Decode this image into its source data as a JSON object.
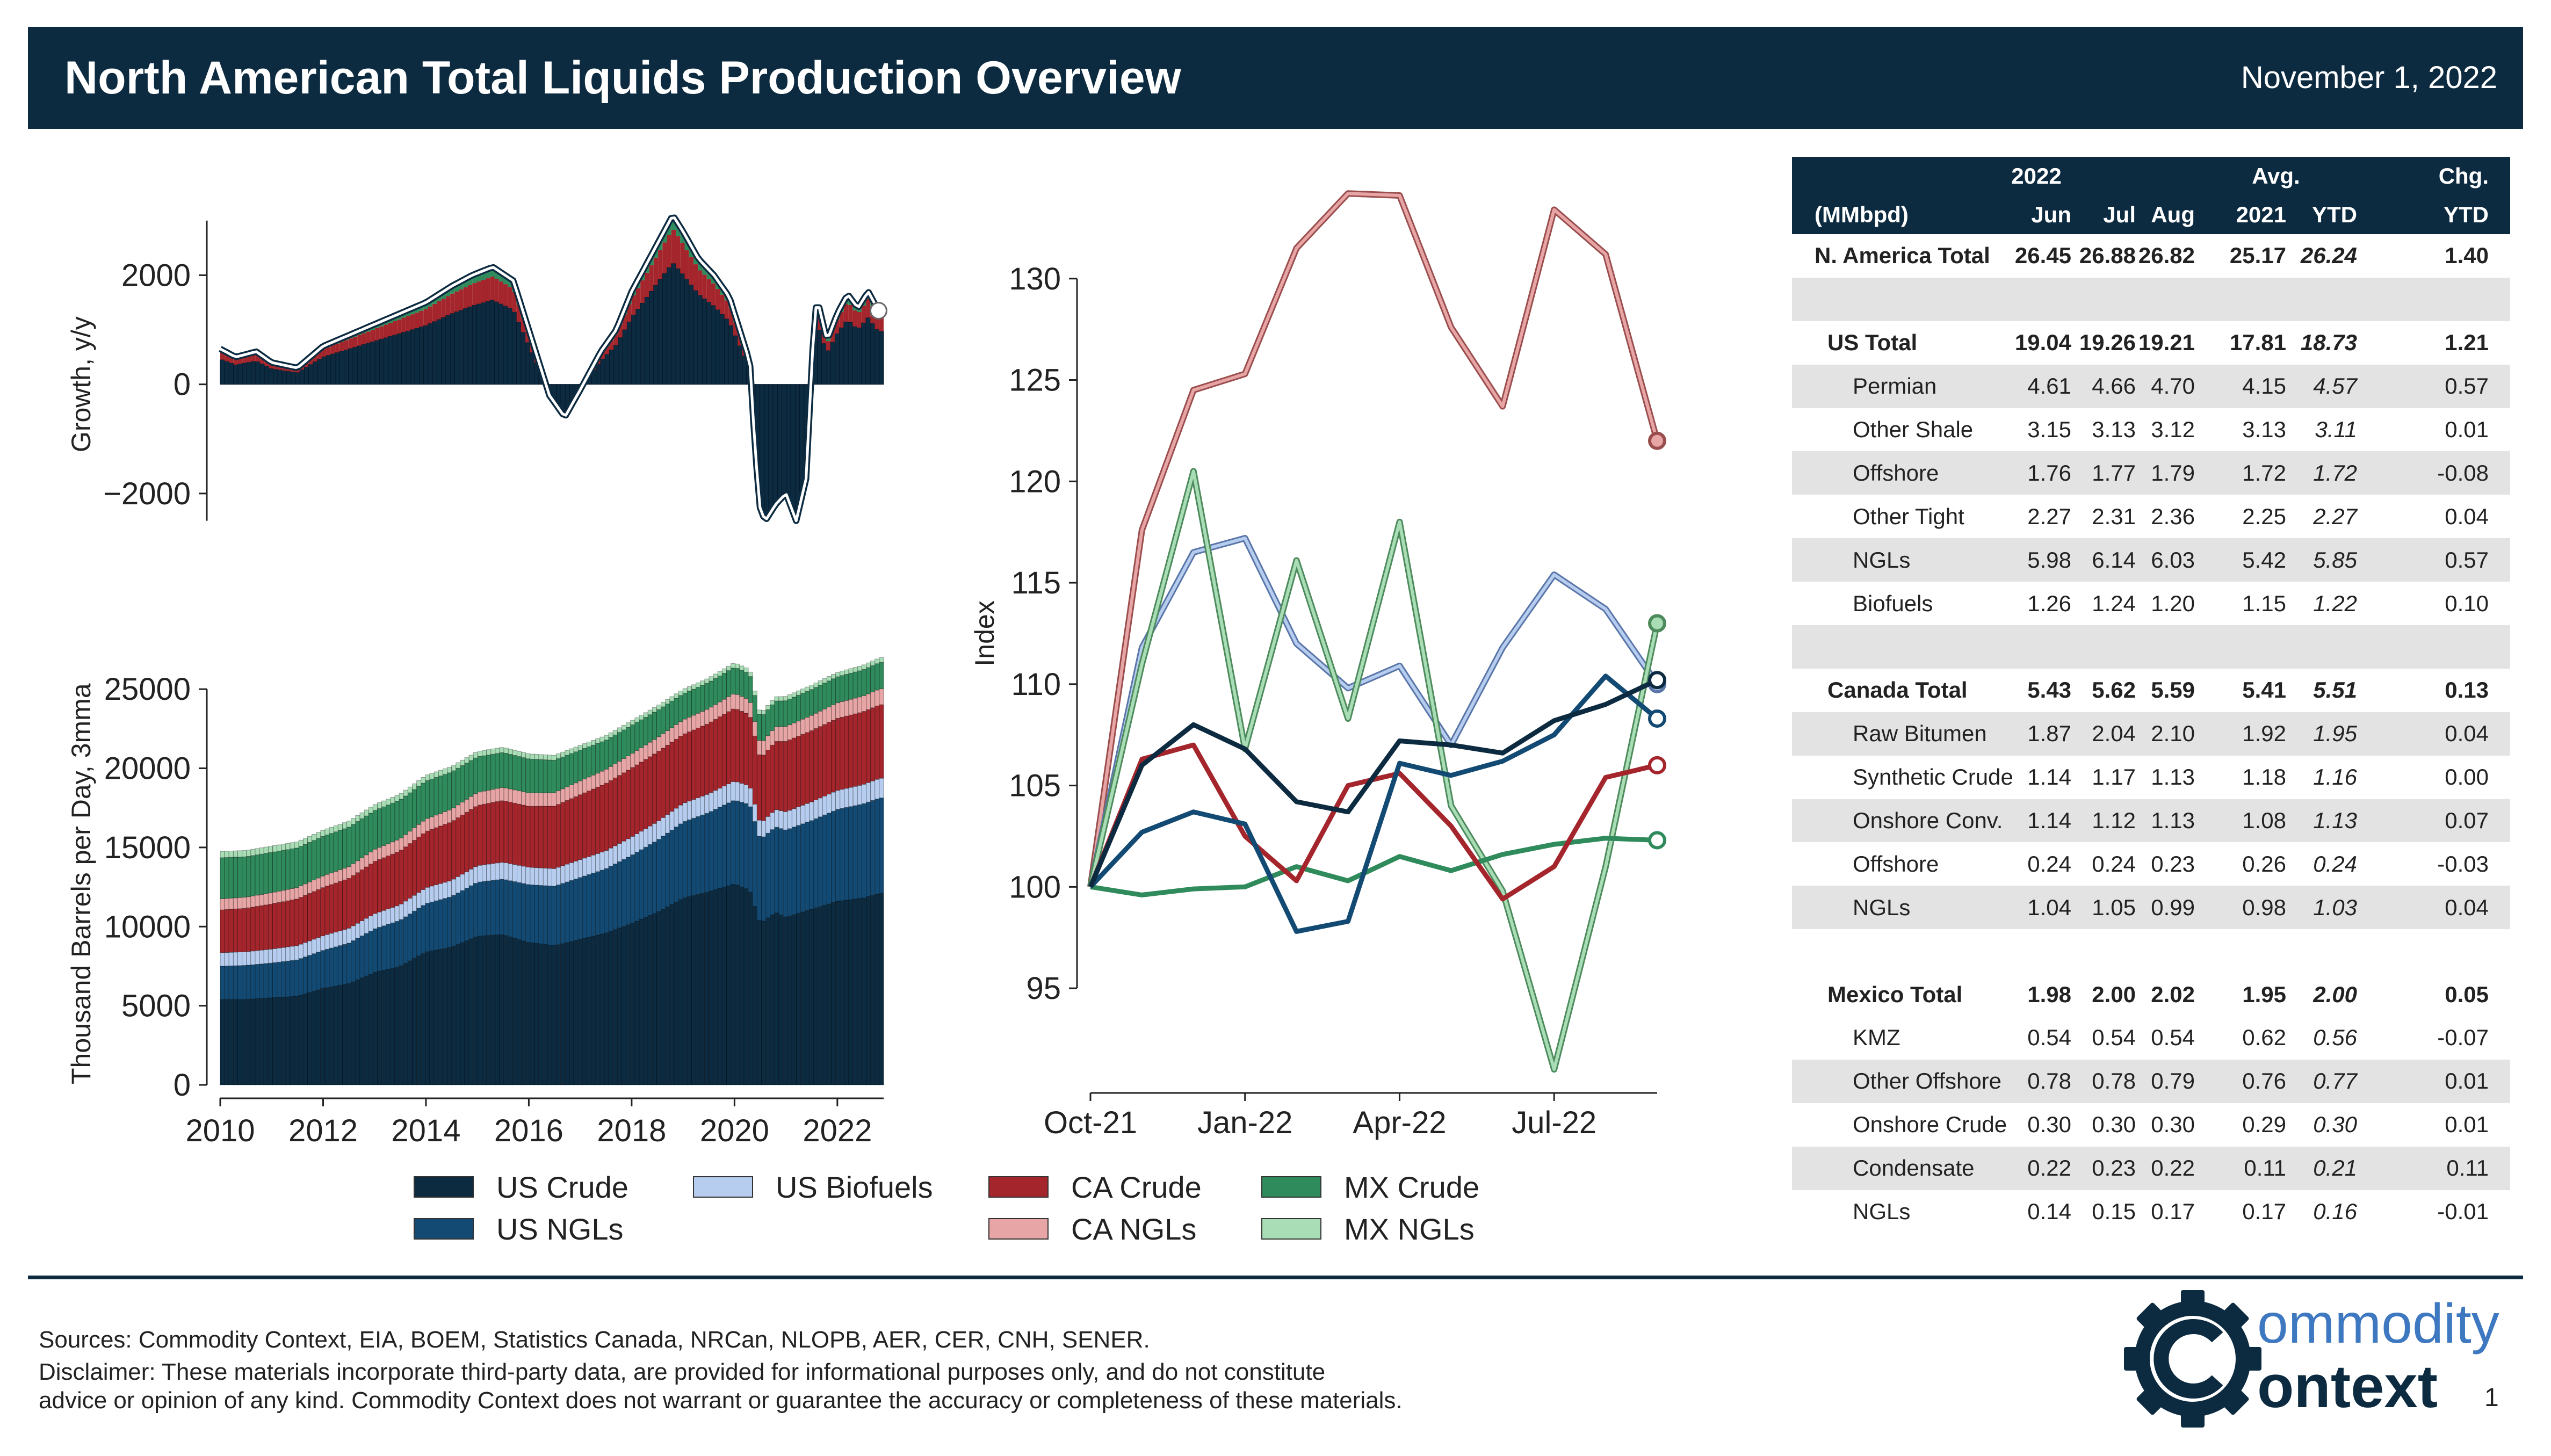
{
  "header": {
    "title": "North American Total Liquids Production Overview",
    "date": "November 1, 2022"
  },
  "colors": {
    "header_bg": "#0d2b40",
    "us_crude": "#0d2b40",
    "us_ngls": "#134a73",
    "us_biofuels": "#b6cdef",
    "ca_crude": "#a4262c",
    "ca_ngls": "#e7a5a5",
    "mx_crude": "#2f8a5c",
    "mx_ngls": "#a9ddb5",
    "row_shade": "#e3e3e3"
  },
  "legend": {
    "items": [
      {
        "label": "US Crude",
        "color": "#0d2b40"
      },
      {
        "label": "US NGLs",
        "color": "#134a73"
      },
      {
        "label": "US Biofuels",
        "color": "#b6cdef"
      },
      {
        "label": "CA Crude",
        "color": "#a4262c"
      },
      {
        "label": "CA NGLs",
        "color": "#e7a5a5"
      },
      {
        "label": "MX Crude",
        "color": "#2f8a5c"
      },
      {
        "label": "MX NGLs",
        "color": "#a9ddb5"
      }
    ]
  },
  "chart_data": [
    {
      "type": "area",
      "ylabel": "Growth, y/y",
      "ylim": [
        -2700,
        3500
      ],
      "xlim": [
        2010,
        2022.9
      ],
      "y_ticks": [
        2000,
        0,
        -2000
      ],
      "y_tick_labels": [
        "2000",
        "0",
        "−2000"
      ],
      "x_ticks": [],
      "series": [
        {
          "name": "N. America Total",
          "x": [
            2010,
            2010.3,
            2010.7,
            2011,
            2011.5,
            2012,
            2012.5,
            2013,
            2013.5,
            2014,
            2014.5,
            2014.9,
            2015.3,
            2015.7,
            2016,
            2016.4,
            2016.7,
            2017,
            2017.4,
            2017.7,
            2018,
            2018.4,
            2018.8,
            2019,
            2019.3,
            2019.6,
            2019.9,
            2020.1,
            2020.3,
            2020.4,
            2020.5,
            2020.6,
            2020.8,
            2021,
            2021.2,
            2021.4,
            2021.5,
            2021.6,
            2021.8,
            2022,
            2022.2,
            2022.4,
            2022.6,
            2022.8
          ],
          "values": [
            650,
            500,
            600,
            400,
            300,
            700,
            900,
            1100,
            1300,
            1500,
            1800,
            2000,
            2150,
            1900,
            1000,
            -200,
            -600,
            -100,
            600,
            1000,
            1700,
            2400,
            3100,
            2800,
            2300,
            2000,
            1600,
            1000,
            400,
            -1200,
            -2300,
            -2500,
            -2200,
            -2000,
            -2500,
            -1700,
            400,
            1600,
            800,
            1300,
            1650,
            1400,
            1700,
            1350
          ]
        }
      ]
    },
    {
      "type": "area",
      "ylabel": "Thousand Barrels per Day, 3mma",
      "xlim": [
        2010,
        2022.9
      ],
      "ylim": [
        0,
        28500
      ],
      "x_ticks": [
        2010,
        2012,
        2014,
        2016,
        2018,
        2020,
        2022
      ],
      "y_ticks": [
        0,
        5000,
        10000,
        15000,
        20000,
        25000
      ],
      "x": [
        2010,
        2010.5,
        2011,
        2011.5,
        2012,
        2012.5,
        2013,
        2013.5,
        2014,
        2014.5,
        2015,
        2015.5,
        2016,
        2016.5,
        2017,
        2017.5,
        2018,
        2018.5,
        2019,
        2019.5,
        2020,
        2020.3,
        2020.5,
        2020.8,
        2021,
        2021.5,
        2022,
        2022.5,
        2022.83
      ],
      "series": [
        {
          "name": "US Crude",
          "values": [
            5400,
            5400,
            5500,
            5600,
            6100,
            6400,
            7100,
            7500,
            8400,
            8700,
            9400,
            9500,
            9000,
            8800,
            9200,
            9600,
            10200,
            10900,
            11800,
            12200,
            12700,
            12300,
            10200,
            10900,
            10600,
            11100,
            11600,
            11800,
            12100
          ]
        },
        {
          "name": "US NGLs",
          "values": [
            2100,
            2150,
            2200,
            2300,
            2400,
            2550,
            2750,
            2900,
            3050,
            3200,
            3400,
            3500,
            3650,
            3750,
            3900,
            4050,
            4300,
            4550,
            4800,
            5000,
            5300,
            5400,
            5300,
            5400,
            5500,
            5600,
            5800,
            5950,
            6030
          ]
        },
        {
          "name": "US Biofuels",
          "values": [
            850,
            860,
            880,
            900,
            920,
            940,
            960,
            980,
            1000,
            1020,
            1050,
            1070,
            1100,
            1110,
            1130,
            1140,
            1160,
            1170,
            1180,
            1190,
            1200,
            1180,
            1000,
            1100,
            1150,
            1180,
            1200,
            1220,
            1240
          ]
        },
        {
          "name": "CA Crude",
          "values": [
            2700,
            2750,
            2850,
            2950,
            3050,
            3150,
            3300,
            3400,
            3550,
            3700,
            3800,
            3900,
            3850,
            3950,
            4100,
            4250,
            4350,
            4400,
            4350,
            4450,
            4600,
            4500,
            4100,
            4300,
            4450,
            4500,
            4550,
            4600,
            4650
          ]
        },
        {
          "name": "CA NGLs",
          "values": [
            700,
            700,
            710,
            720,
            730,
            740,
            760,
            770,
            790,
            800,
            820,
            830,
            840,
            850,
            870,
            880,
            900,
            910,
            920,
            930,
            940,
            930,
            900,
            920,
            940,
            960,
            980,
            990,
            1000
          ]
        },
        {
          "name": "MX Crude",
          "values": [
            2600,
            2550,
            2550,
            2500,
            2500,
            2500,
            2450,
            2450,
            2400,
            2350,
            2250,
            2200,
            2150,
            2050,
            1950,
            1850,
            1800,
            1720,
            1650,
            1650,
            1650,
            1650,
            1650,
            1630,
            1630,
            1640,
            1650,
            1660,
            1670
          ]
        },
        {
          "name": "MX NGLs",
          "values": [
            400,
            400,
            395,
            390,
            385,
            380,
            375,
            370,
            360,
            350,
            340,
            330,
            320,
            310,
            300,
            300,
            290,
            290,
            280,
            280,
            280,
            280,
            270,
            270,
            270,
            280,
            280,
            290,
            300
          ]
        }
      ]
    },
    {
      "type": "line",
      "ylabel": "Index",
      "x": [
        "Oct-21",
        "Nov-21",
        "Dec-21",
        "Jan-22",
        "Feb-22",
        "Mar-22",
        "Apr-22",
        "May-22",
        "Jun-22",
        "Jul-22",
        "Aug-22",
        "Sep-22"
      ],
      "x_ticks": [
        "Oct-21",
        "Jan-22",
        "Apr-22",
        "Jul-22"
      ],
      "ylim": [
        90.5,
        135
      ],
      "y_ticks": [
        95,
        100,
        105,
        110,
        115,
        120,
        125,
        130
      ],
      "series": [
        {
          "name": "US Crude",
          "values": [
            100,
            106.0,
            108.0,
            106.8,
            104.2,
            103.7,
            107.2,
            107.0,
            106.6,
            108.2,
            109.0,
            110.2
          ]
        },
        {
          "name": "US NGLs",
          "values": [
            100,
            102.7,
            103.7,
            103.1,
            97.8,
            98.3,
            106.1,
            105.5,
            106.2,
            107.5,
            110.4,
            108.3
          ]
        },
        {
          "name": "US Biofuels",
          "values": [
            100,
            111.8,
            116.5,
            117.2,
            112.0,
            109.8,
            110.9,
            107.0,
            111.8,
            115.4,
            113.7,
            110.0
          ]
        },
        {
          "name": "CA Crude",
          "values": [
            100,
            106.3,
            107.0,
            102.5,
            100.3,
            105.0,
            105.6,
            103.0,
            99.4,
            101.0,
            105.4,
            106.0
          ]
        },
        {
          "name": "CA NGLs",
          "values": [
            100,
            117.6,
            124.5,
            125.3,
            131.5,
            134.2,
            134.1,
            127.6,
            123.7,
            133.4,
            131.2,
            122.0
          ]
        },
        {
          "name": "MX Crude",
          "values": [
            100,
            99.6,
            99.9,
            100.0,
            101.0,
            100.3,
            101.5,
            100.8,
            101.6,
            102.1,
            102.4,
            102.3
          ]
        },
        {
          "name": "MX NGLs",
          "values": [
            100,
            111.0,
            120.5,
            106.8,
            116.1,
            108.3,
            118.0,
            104.0,
            99.8,
            91.0,
            101.0,
            113.0
          ]
        }
      ]
    },
    {
      "type": "table",
      "header": {
        "group_2022": "2022",
        "group_avg": "Avg.",
        "group_chg": "Chg.",
        "unit": "(MMbpd)",
        "jun": "Jun",
        "jul": "Jul",
        "aug": "Aug",
        "y2021": "2021",
        "ytd": "YTD",
        "chg_ytd": "YTD"
      },
      "rows": [
        {
          "label": "N. America Total",
          "jun": "26.45",
          "jul": "26.88",
          "aug": "26.82",
          "y2021": "25.17",
          "ytd": "26.24",
          "chg": "1.40"
        },
        {
          "label": "",
          "jun": "",
          "jul": "",
          "aug": "",
          "y2021": "",
          "ytd": "",
          "chg": ""
        },
        {
          "label": "US Total",
          "jun": "19.04",
          "jul": "19.26",
          "aug": "19.21",
          "y2021": "17.81",
          "ytd": "18.73",
          "chg": "1.21"
        },
        {
          "label": "Permian",
          "jun": "4.61",
          "jul": "4.66",
          "aug": "4.70",
          "y2021": "4.15",
          "ytd": "4.57",
          "chg": "0.57"
        },
        {
          "label": "Other Shale",
          "jun": "3.15",
          "jul": "3.13",
          "aug": "3.12",
          "y2021": "3.13",
          "ytd": "3.11",
          "chg": "0.01"
        },
        {
          "label": "Offshore",
          "jun": "1.76",
          "jul": "1.77",
          "aug": "1.79",
          "y2021": "1.72",
          "ytd": "1.72",
          "chg": "-0.08"
        },
        {
          "label": "Other Tight",
          "jun": "2.27",
          "jul": "2.31",
          "aug": "2.36",
          "y2021": "2.25",
          "ytd": "2.27",
          "chg": "0.04"
        },
        {
          "label": "NGLs",
          "jun": "5.98",
          "jul": "6.14",
          "aug": "6.03",
          "y2021": "5.42",
          "ytd": "5.85",
          "chg": "0.57"
        },
        {
          "label": "Biofuels",
          "jun": "1.26",
          "jul": "1.24",
          "aug": "1.20",
          "y2021": "1.15",
          "ytd": "1.22",
          "chg": "0.10"
        },
        {
          "label": "",
          "jun": "",
          "jul": "",
          "aug": "",
          "y2021": "",
          "ytd": "",
          "chg": ""
        },
        {
          "label": "Canada Total",
          "jun": "5.43",
          "jul": "5.62",
          "aug": "5.59",
          "y2021": "5.41",
          "ytd": "5.51",
          "chg": "0.13"
        },
        {
          "label": "Raw Bitumen",
          "jun": "1.87",
          "jul": "2.04",
          "aug": "2.10",
          "y2021": "1.92",
          "ytd": "1.95",
          "chg": "0.04"
        },
        {
          "label": "Synthetic Crude",
          "jun": "1.14",
          "jul": "1.17",
          "aug": "1.13",
          "y2021": "1.18",
          "ytd": "1.16",
          "chg": "0.00"
        },
        {
          "label": "Onshore Conv.",
          "jun": "1.14",
          "jul": "1.12",
          "aug": "1.13",
          "y2021": "1.08",
          "ytd": "1.13",
          "chg": "0.07"
        },
        {
          "label": "Offshore",
          "jun": "0.24",
          "jul": "0.24",
          "aug": "0.23",
          "y2021": "0.26",
          "ytd": "0.24",
          "chg": "-0.03"
        },
        {
          "label": "NGLs",
          "jun": "1.04",
          "jul": "1.05",
          "aug": "0.99",
          "y2021": "0.98",
          "ytd": "1.03",
          "chg": "0.04"
        },
        {
          "label": "",
          "jun": "",
          "jul": "",
          "aug": "",
          "y2021": "",
          "ytd": "",
          "chg": ""
        },
        {
          "label": "Mexico Total",
          "jun": "1.98",
          "jul": "2.00",
          "aug": "2.02",
          "y2021": "1.95",
          "ytd": "2.00",
          "chg": "0.05"
        },
        {
          "label": "KMZ",
          "jun": "0.54",
          "jul": "0.54",
          "aug": "0.54",
          "y2021": "0.62",
          "ytd": "0.56",
          "chg": "-0.07"
        },
        {
          "label": "Other Offshore",
          "jun": "0.78",
          "jul": "0.78",
          "aug": "0.79",
          "y2021": "0.76",
          "ytd": "0.77",
          "chg": "0.01"
        },
        {
          "label": "Onshore Crude",
          "jun": "0.30",
          "jul": "0.30",
          "aug": "0.30",
          "y2021": "0.29",
          "ytd": "0.30",
          "chg": "0.01"
        },
        {
          "label": "Condensate",
          "jun": "0.22",
          "jul": "0.23",
          "aug": "0.22",
          "y2021": "0.11",
          "ytd": "0.21",
          "chg": "0.11"
        },
        {
          "label": "NGLs",
          "jun": "0.14",
          "jul": "0.15",
          "aug": "0.17",
          "y2021": "0.17",
          "ytd": "0.16",
          "chg": "-0.01"
        }
      ]
    }
  ],
  "footer": {
    "sources": "Sources: Commodity Context, EIA, BOEM, Statistics Canada, NRCan, NLOPB, AER, CER, CNH, SENER.",
    "disclaimer1": "Disclaimer: These materials incorporate third-party data, are provided for informational purposes only, and do not constitute",
    "disclaimer2": "advice or opinion of any kind. Commodity Context does not warrant or guarantee the accuracy or completeness of these materials.",
    "logo_text1": "ommodity",
    "logo_text2": "ontext",
    "page_number": "1"
  }
}
